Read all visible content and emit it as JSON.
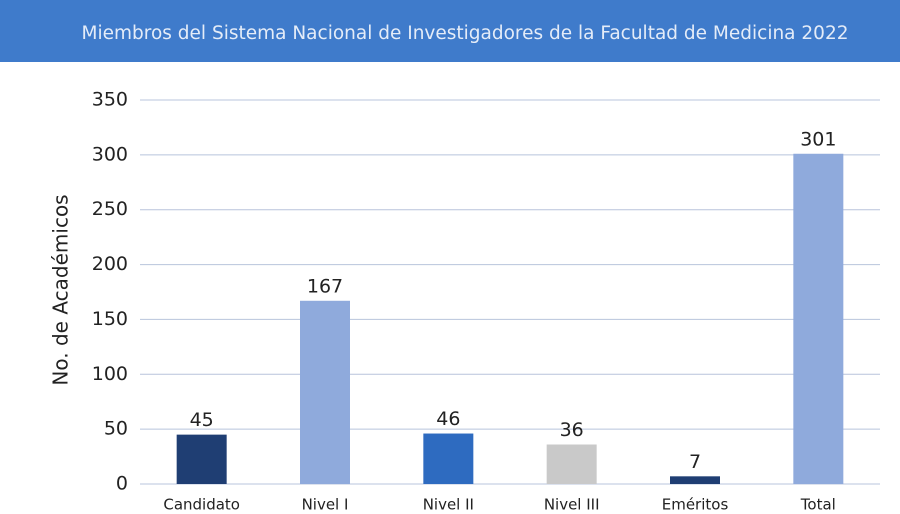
{
  "chart_data": {
    "type": "bar",
    "title": "Miembros del Sistema Nacional de Investigadores de la Facultad de Medicina 2022",
    "y_label": "No. de Académicos",
    "categories": [
      "Candidato",
      "Nivel I",
      "Nivel II",
      "Nivel III",
      "Eméritos",
      "Total"
    ],
    "values": [
      45,
      167,
      46,
      36,
      7,
      301
    ],
    "colors": [
      "#1f3e73",
      "#8faadc",
      "#2e6bc0",
      "#c9c9c9",
      "#1f3e73",
      "#8faadc"
    ],
    "ylim": [
      0,
      350
    ],
    "yticks": [
      0,
      50,
      100,
      150,
      200,
      250,
      300,
      350
    ],
    "grid": true
  }
}
